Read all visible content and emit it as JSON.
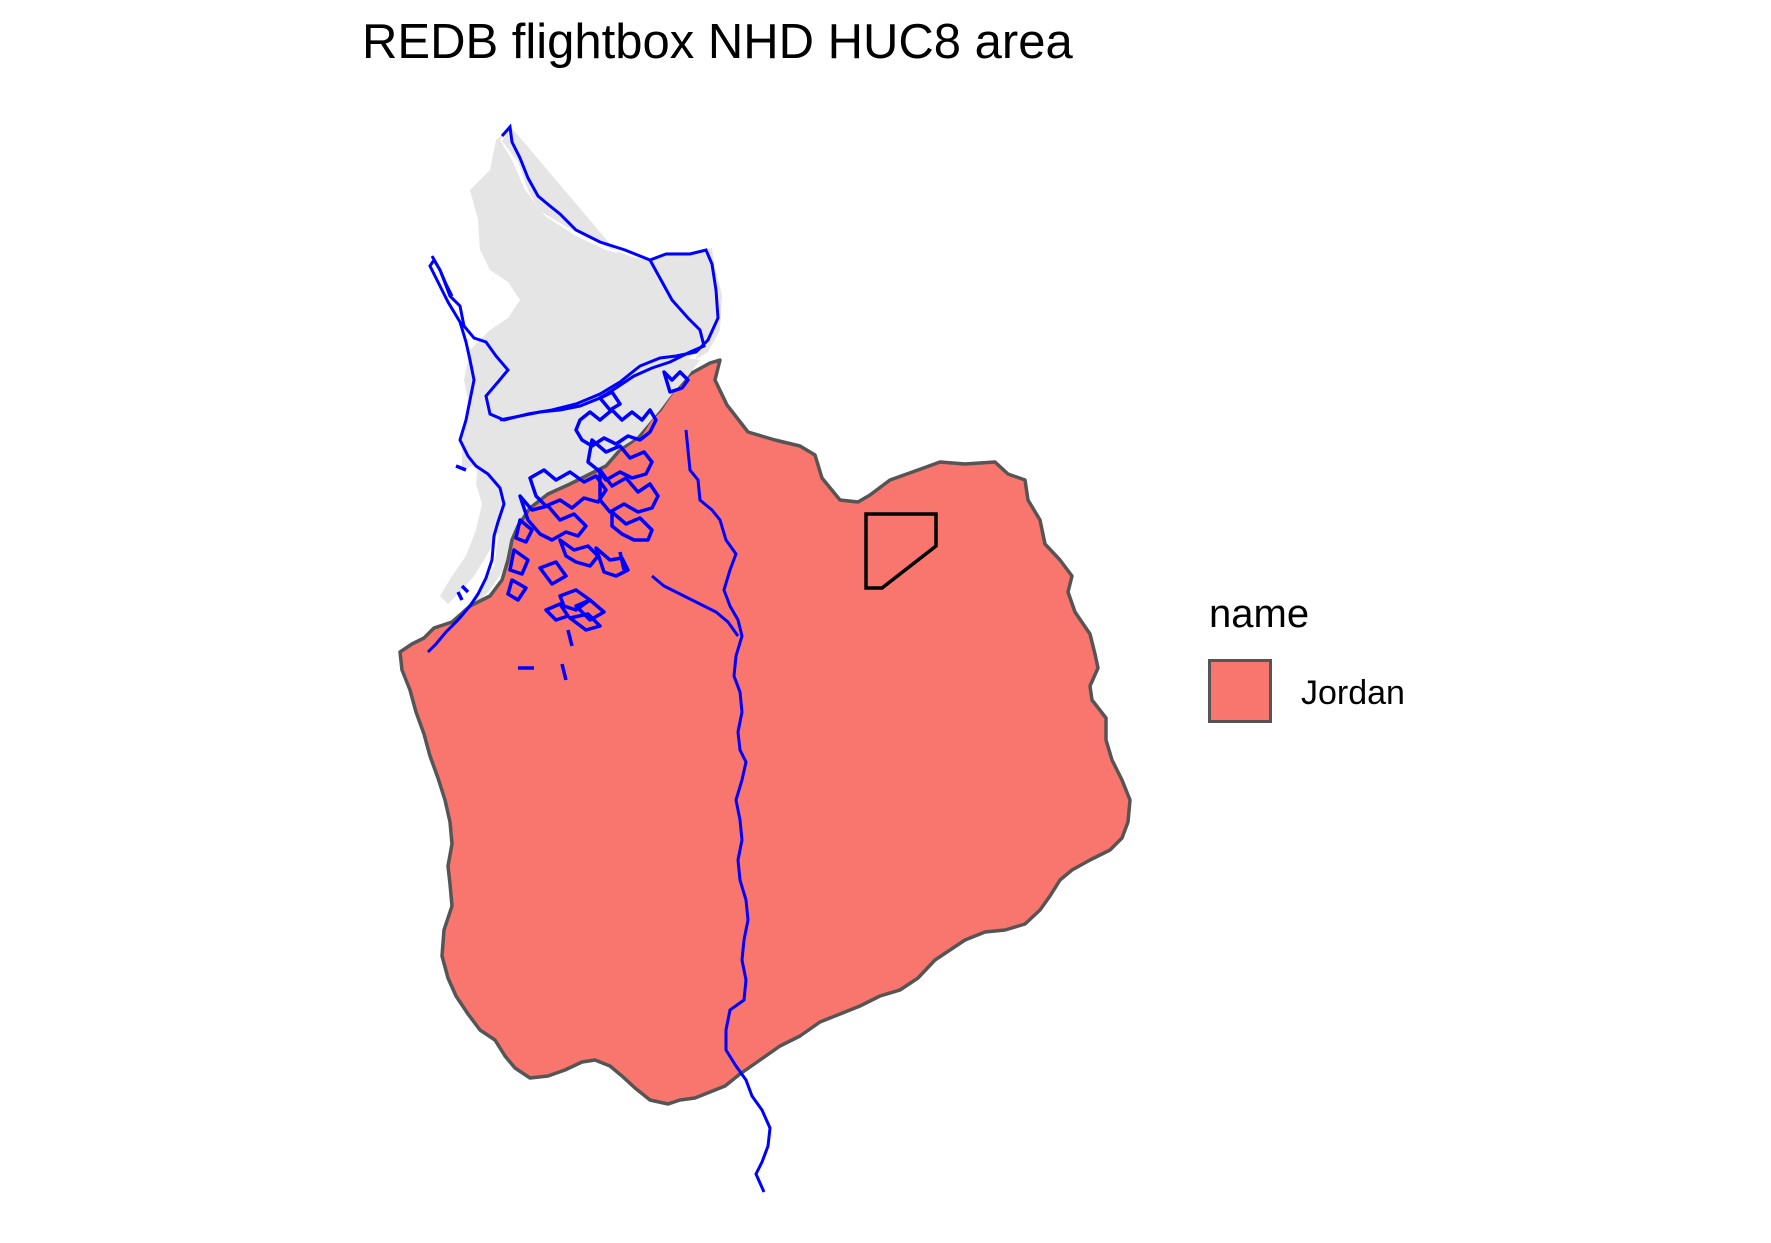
{
  "title": "REDB flightbox NHD HUC8 area",
  "legend": {
    "title": "name",
    "items": [
      {
        "label": "Jordan",
        "fill": "#f8766d"
      }
    ]
  },
  "colors": {
    "huc8_fill": "#f8766d",
    "huc8_border": "#555555",
    "lake_fill": "#e5e5e5",
    "flowline": "#0000ff",
    "flightbox": "#000000"
  }
}
